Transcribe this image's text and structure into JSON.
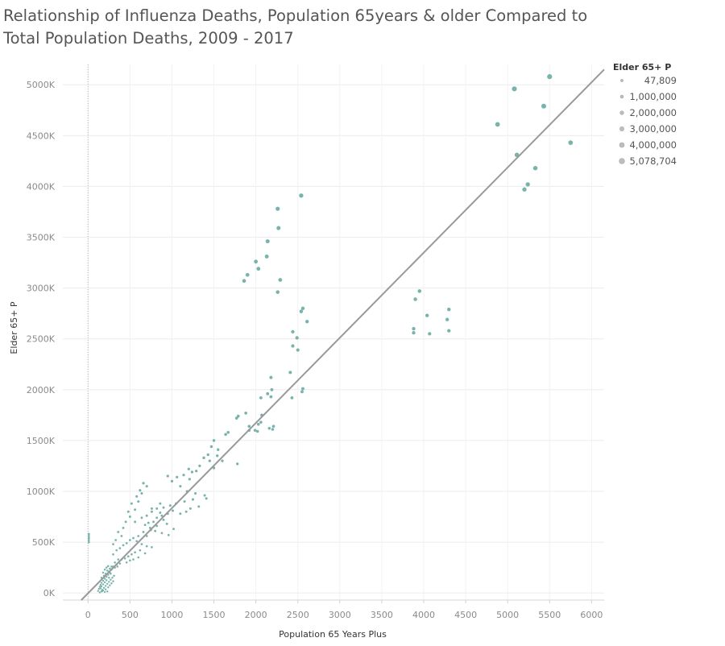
{
  "chart_data": {
    "type": "scatter",
    "title": "Relationship of Influenza Deaths, Population 65years & older Compared to Total Population Deaths, 2009 - 2017",
    "xlabel": "Population 65 Years Plus",
    "ylabel": "Elder 65+ P",
    "xlim": [
      -300,
      6150
    ],
    "ylim": [
      -70000,
      5200000
    ],
    "x_ticks": [
      0,
      500,
      1000,
      1500,
      2000,
      2500,
      3000,
      3500,
      4000,
      4500,
      5000,
      5500,
      6000
    ],
    "x_tick_labels": [
      "0",
      "500",
      "1000",
      "1500",
      "2000",
      "2500",
      "3000",
      "3500",
      "4000",
      "4500",
      "5000",
      "5500",
      "6000"
    ],
    "y_ticks": [
      0,
      500000,
      1000000,
      1500000,
      2000000,
      2500000,
      3000000,
      3500000,
      4000000,
      4500000,
      5000000
    ],
    "y_tick_labels": [
      "0K",
      "500K",
      "1000K",
      "1500K",
      "2000K",
      "2500K",
      "3000K",
      "3500K",
      "4000K",
      "4500K",
      "5000K"
    ],
    "grid": true,
    "reference_line_x": 0,
    "point_color": "#6aaca3",
    "trend_line": {
      "color": "#999999",
      "from": [
        -80,
        -70000
      ],
      "to": [
        6150,
        5150000
      ]
    },
    "legend": {
      "title": "Elder 65+ P",
      "placement": "right",
      "entries": [
        "47,809",
        "1,000,000",
        "2,000,000",
        "3,000,000",
        "4,000,000",
        "5,078,704"
      ],
      "values": [
        47809,
        1000000,
        2000000,
        3000000,
        4000000,
        5078704
      ]
    },
    "points": [
      [
        5500,
        5080000
      ],
      [
        5080,
        4960000
      ],
      [
        5430,
        4790000
      ],
      [
        4880,
        4610000
      ],
      [
        5750,
        4430000
      ],
      [
        5110,
        4310000
      ],
      [
        5330,
        4180000
      ],
      [
        5240,
        4020000
      ],
      [
        5200,
        3970000
      ],
      [
        2540,
        3910000
      ],
      [
        2260,
        3780000
      ],
      [
        2270,
        3590000
      ],
      [
        2140,
        3460000
      ],
      [
        2130,
        3310000
      ],
      [
        2000,
        3260000
      ],
      [
        2030,
        3190000
      ],
      [
        1900,
        3130000
      ],
      [
        2290,
        3080000
      ],
      [
        1860,
        3070000
      ],
      [
        2260,
        2960000
      ],
      [
        2560,
        2800000
      ],
      [
        2540,
        2770000
      ],
      [
        2610,
        2670000
      ],
      [
        3950,
        2970000
      ],
      [
        3900,
        2890000
      ],
      [
        4300,
        2790000
      ],
      [
        4040,
        2730000
      ],
      [
        3880,
        2600000
      ],
      [
        3880,
        2560000
      ],
      [
        4070,
        2550000
      ],
      [
        4280,
        2690000
      ],
      [
        4300,
        2580000
      ],
      [
        2440,
        2570000
      ],
      [
        2490,
        2510000
      ],
      [
        2440,
        2430000
      ],
      [
        2500,
        2390000
      ],
      [
        2410,
        2170000
      ],
      [
        2180,
        2120000
      ],
      [
        2190,
        2000000
      ],
      [
        2560,
        2010000
      ],
      [
        2550,
        1980000
      ],
      [
        2140,
        1960000
      ],
      [
        2430,
        1920000
      ],
      [
        2060,
        1920000
      ],
      [
        2180,
        1930000
      ],
      [
        1880,
        1770000
      ],
      [
        1790,
        1740000
      ],
      [
        1770,
        1720000
      ],
      [
        2070,
        1750000
      ],
      [
        1920,
        1640000
      ],
      [
        1990,
        1600000
      ],
      [
        2030,
        1660000
      ],
      [
        2210,
        1640000
      ],
      [
        2200,
        1610000
      ],
      [
        2020,
        1590000
      ],
      [
        2060,
        1680000
      ],
      [
        1920,
        1600000
      ],
      [
        2160,
        1620000
      ],
      [
        1670,
        1580000
      ],
      [
        1640,
        1560000
      ],
      [
        1500,
        1500000
      ],
      [
        1470,
        1440000
      ],
      [
        1550,
        1410000
      ],
      [
        1430,
        1360000
      ],
      [
        1540,
        1350000
      ],
      [
        1380,
        1330000
      ],
      [
        1450,
        1300000
      ],
      [
        1600,
        1300000
      ],
      [
        1780,
        1270000
      ],
      [
        1500,
        1230000
      ],
      [
        1290,
        1200000
      ],
      [
        1330,
        1250000
      ],
      [
        1200,
        1220000
      ],
      [
        1240,
        1190000
      ],
      [
        1140,
        1160000
      ],
      [
        1210,
        1120000
      ],
      [
        1060,
        1140000
      ],
      [
        1000,
        1100000
      ],
      [
        950,
        1150000
      ],
      [
        1100,
        1050000
      ],
      [
        1180,
        1000000
      ],
      [
        1280,
        980000
      ],
      [
        1390,
        960000
      ],
      [
        1410,
        930000
      ],
      [
        1250,
        920000
      ],
      [
        1150,
        900000
      ],
      [
        1050,
        880000
      ],
      [
        980,
        860000
      ],
      [
        900,
        840000
      ],
      [
        860,
        880000
      ],
      [
        820,
        830000
      ],
      [
        760,
        800000
      ],
      [
        1010,
        810000
      ],
      [
        1100,
        780000
      ],
      [
        1170,
        800000
      ],
      [
        1220,
        830000
      ],
      [
        1320,
        850000
      ],
      [
        950,
        780000
      ],
      [
        880,
        760000
      ],
      [
        820,
        740000
      ],
      [
        780,
        700000
      ],
      [
        720,
        690000
      ],
      [
        680,
        670000
      ],
      [
        740,
        640000
      ],
      [
        800,
        610000
      ],
      [
        880,
        590000
      ],
      [
        960,
        570000
      ],
      [
        1020,
        630000
      ],
      [
        660,
        600000
      ],
      [
        600,
        560000
      ],
      [
        540,
        540000
      ],
      [
        500,
        520000
      ],
      [
        460,
        490000
      ],
      [
        420,
        470000
      ],
      [
        380,
        440000
      ],
      [
        340,
        420000
      ],
      [
        300,
        380000
      ],
      [
        580,
        510000
      ],
      [
        640,
        480000
      ],
      [
        700,
        460000
      ],
      [
        760,
        450000
      ],
      [
        620,
        420000
      ],
      [
        560,
        400000
      ],
      [
        520,
        380000
      ],
      [
        480,
        360000
      ],
      [
        440,
        340000
      ],
      [
        400,
        330000
      ],
      [
        680,
        390000
      ],
      [
        600,
        350000
      ],
      [
        540,
        330000
      ],
      [
        500,
        320000
      ],
      [
        460,
        300000
      ],
      [
        380,
        290000
      ],
      [
        350,
        260000
      ],
      [
        320,
        250000
      ],
      [
        280,
        230000
      ],
      [
        250,
        210000
      ],
      [
        420,
        640000
      ],
      [
        450,
        700000
      ],
      [
        500,
        750000
      ],
      [
        560,
        820000
      ],
      [
        600,
        900000
      ],
      [
        640,
        980000
      ],
      [
        700,
        1050000
      ],
      [
        580,
        950000
      ],
      [
        520,
        880000
      ],
      [
        480,
        800000
      ],
      [
        620,
        1010000
      ],
      [
        660,
        1080000
      ],
      [
        400,
        560000
      ],
      [
        360,
        600000
      ],
      [
        330,
        520000
      ],
      [
        300,
        480000
      ],
      [
        560,
        700000
      ],
      [
        700,
        760000
      ],
      [
        750,
        620000
      ],
      [
        820,
        660000
      ],
      [
        900,
        720000
      ],
      [
        940,
        680000
      ],
      [
        860,
        790000
      ],
      [
        640,
        740000
      ],
      [
        760,
        830000
      ],
      [
        700,
        560000
      ],
      [
        260,
        200000
      ],
      [
        240,
        180000
      ],
      [
        220,
        160000
      ],
      [
        200,
        140000
      ],
      [
        180,
        120000
      ],
      [
        160,
        100000
      ],
      [
        150,
        80000
      ],
      [
        140,
        60000
      ],
      [
        130,
        40000
      ],
      [
        120,
        20000
      ],
      [
        170,
        30000
      ],
      [
        190,
        50000
      ],
      [
        210,
        70000
      ],
      [
        230,
        90000
      ],
      [
        250,
        110000
      ],
      [
        270,
        130000
      ],
      [
        290,
        150000
      ],
      [
        310,
        170000
      ],
      [
        200,
        10000
      ],
      [
        160,
        15000
      ],
      [
        180,
        25000
      ],
      [
        140,
        5000
      ],
      [
        210,
        35000
      ],
      [
        240,
        55000
      ],
      [
        260,
        75000
      ],
      [
        280,
        95000
      ],
      [
        300,
        115000
      ],
      [
        220,
        125000
      ],
      [
        200,
        105000
      ],
      [
        180,
        85000
      ],
      [
        160,
        65000
      ],
      [
        150,
        45000
      ],
      [
        170,
        20000
      ],
      [
        230,
        15000
      ],
      [
        250,
        150000
      ],
      [
        270,
        190000
      ],
      [
        230,
        220000
      ],
      [
        210,
        190000
      ],
      [
        190,
        170000
      ],
      [
        280,
        260000
      ],
      [
        320,
        300000
      ],
      [
        360,
        330000
      ],
      [
        340,
        280000
      ],
      [
        300,
        260000
      ],
      [
        260,
        240000
      ],
      [
        240,
        265000
      ],
      [
        200,
        230000
      ],
      [
        220,
        250000
      ],
      [
        180,
        200000
      ],
      [
        160,
        150000
      ],
      [
        10,
        580000
      ],
      [
        10,
        560000
      ],
      [
        10,
        540000
      ],
      [
        10,
        520000
      ],
      [
        10,
        500000
      ]
    ]
  }
}
